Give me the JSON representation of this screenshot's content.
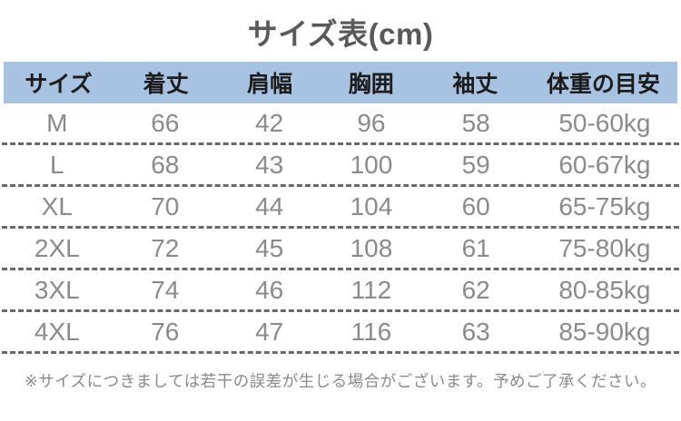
{
  "title": "サイズ表(cm)",
  "table": {
    "headers": [
      "サイズ",
      "着丈",
      "肩幅",
      "胸囲",
      "袖丈",
      "体重の目安"
    ],
    "rows": [
      [
        "M",
        "66",
        "42",
        "96",
        "58",
        "50-60kg"
      ],
      [
        "L",
        "68",
        "43",
        "100",
        "59",
        "60-67kg"
      ],
      [
        "XL",
        "70",
        "44",
        "104",
        "60",
        "65-75kg"
      ],
      [
        "2XL",
        "72",
        "45",
        "108",
        "61",
        "75-80kg"
      ],
      [
        "3XL",
        "74",
        "46",
        "112",
        "62",
        "80-85kg"
      ],
      [
        "4XL",
        "76",
        "47",
        "116",
        "63",
        "85-90kg"
      ]
    ]
  },
  "note": "※サイズにつきましては若干の誤差が生じる場合がございます。予めご了承ください。",
  "colors": {
    "header_background": "#a8c2e2",
    "header_text": "#1c1c1c",
    "title_text": "#595959",
    "data_text": "#8a8a8a",
    "dashed_line": "#686868",
    "page_background": "#ffffff"
  }
}
